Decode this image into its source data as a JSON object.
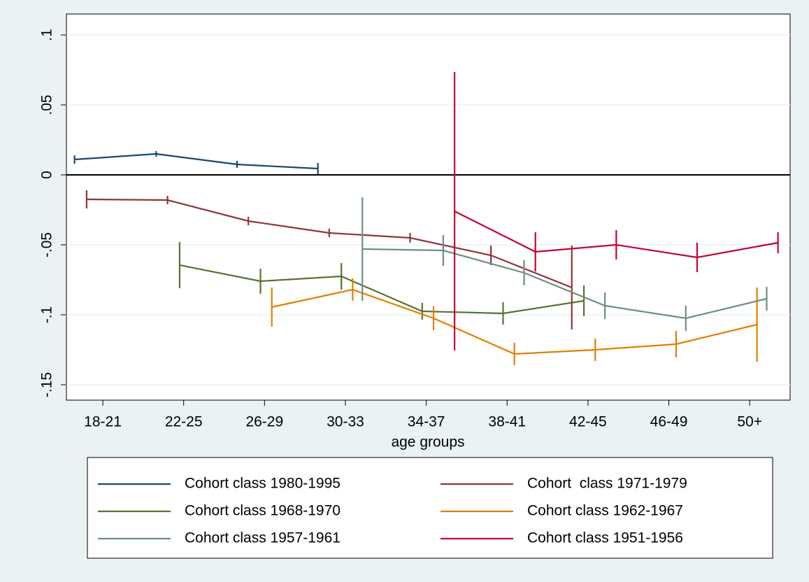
{
  "chart_data": {
    "type": "line",
    "xlabel": "age groups",
    "xlim": [
      0.55,
      9.5
    ],
    "xticks": [
      {
        "value": 1,
        "label": "18-21"
      },
      {
        "value": 2,
        "label": "22-25"
      },
      {
        "value": 3,
        "label": "26-29"
      },
      {
        "value": 4,
        "label": "30-33"
      },
      {
        "value": 5,
        "label": "34-37"
      },
      {
        "value": 6,
        "label": "38-41"
      },
      {
        "value": 7,
        "label": "42-45"
      },
      {
        "value": 8,
        "label": "46-49"
      },
      {
        "value": 9,
        "label": "50+"
      }
    ],
    "ylim": [
      -0.161,
      0.115
    ],
    "yticks": [
      {
        "value": 0.1,
        "label": ".1"
      },
      {
        "value": 0.05,
        "label": ".05"
      },
      0,
      {
        "value": -0.05,
        "label": "-.05"
      },
      {
        "value": -0.1,
        "label": "-.1"
      },
      {
        "value": -0.15,
        "label": "-.15"
      }
    ],
    "grid": true,
    "reference_line": 0,
    "legend": "bottom",
    "series": [
      {
        "name": "Cohort class 1980-1995",
        "color": "#1a476f",
        "x": [
          0.65,
          1.66,
          2.66,
          3.66
        ],
        "values": [
          0.011,
          0.015,
          0.0075,
          0.0045
        ],
        "errors": [
          0.003,
          0.002,
          0.0025,
          0.004
        ]
      },
      {
        "name": "Cohort  class 1971-1979",
        "color": "#90353b",
        "x": [
          0.8,
          1.8,
          2.8,
          3.8,
          4.8,
          5.8,
          6.8
        ],
        "values": [
          -0.0175,
          -0.018,
          -0.033,
          -0.0415,
          -0.045,
          -0.0575,
          -0.0805
        ],
        "errors": [
          0.0065,
          0.003,
          0.003,
          0.003,
          0.0035,
          0.007,
          0.03
        ]
      },
      {
        "name": "Cohort class 1968-1970",
        "color": "#55752f",
        "x": [
          1.95,
          2.95,
          3.95,
          4.95,
          5.95,
          6.95
        ],
        "values": [
          -0.0645,
          -0.076,
          -0.0725,
          -0.0975,
          -0.099,
          -0.09
        ],
        "errors": [
          0.0165,
          0.009,
          0.0095,
          0.006,
          0.008,
          0.011
        ]
      },
      {
        "name": "Cohort class 1962-1967",
        "color": "#e37e00",
        "x": [
          3.09,
          4.09,
          5.09,
          6.09,
          7.09,
          8.09,
          9.09
        ],
        "values": [
          -0.0945,
          -0.082,
          -0.1025,
          -0.128,
          -0.125,
          -0.121,
          -0.107
        ],
        "errors": [
          0.014,
          0.008,
          0.0085,
          0.008,
          0.008,
          0.0095,
          0.0265
        ]
      },
      {
        "name": "Cohort class 1957-1961",
        "color": "#6e8e84",
        "x": [
          4.21,
          5.21,
          6.21,
          7.21,
          8.21,
          9.21
        ],
        "values": [
          -0.053,
          -0.054,
          -0.07,
          -0.0935,
          -0.1025,
          -0.0885
        ],
        "errors": [
          0.037,
          0.011,
          0.009,
          0.0095,
          0.009,
          0.0085
        ]
      },
      {
        "name": "Cohort class 1951-1956",
        "color": "#c10534",
        "x": [
          5.35,
          6.35,
          7.35,
          8.35,
          9.35
        ],
        "values": [
          -0.026,
          -0.055,
          -0.05,
          -0.059,
          -0.0485
        ],
        "errors": [
          0.0995,
          0.014,
          0.0105,
          0.0105,
          0.0075
        ]
      }
    ]
  }
}
